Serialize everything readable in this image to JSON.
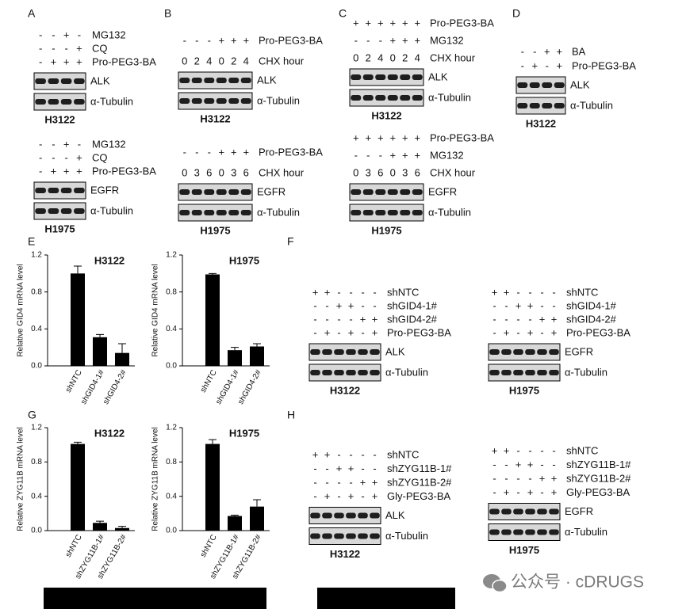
{
  "blots": [
    {
      "panel": "A",
      "rows": [
        {
          "name": "MG132",
          "signs": [
            "-",
            "-",
            "+",
            "-"
          ]
        },
        {
          "name": "CQ",
          "signs": [
            "-",
            "-",
            "-",
            "+"
          ]
        },
        {
          "name": "Pro-PEG3-BA",
          "signs": [
            "-",
            "+",
            "+",
            "+"
          ]
        }
      ],
      "bands": [
        "ALK",
        "α-Tubulin"
      ],
      "cell_line": "H3122"
    },
    {
      "rows": [
        {
          "name": "MG132",
          "signs": [
            "-",
            "-",
            "+",
            "-"
          ]
        },
        {
          "name": "CQ",
          "signs": [
            "-",
            "-",
            "-",
            "+"
          ]
        },
        {
          "name": "Pro-PEG3-BA",
          "signs": [
            "-",
            "+",
            "+",
            "+"
          ]
        }
      ],
      "bands": [
        "EGFR",
        "α-Tubulin"
      ],
      "cell_line": "H1975"
    },
    {
      "panel": "B",
      "rows": [
        {
          "name": "Pro-PEG3-BA",
          "signs": [
            "-",
            "-",
            "-",
            "+",
            "+",
            "+"
          ]
        },
        {
          "name": "CHX  hour",
          "signs": [
            "0",
            "2",
            "4",
            "0",
            "2",
            "4"
          ]
        }
      ],
      "bands": [
        "ALK",
        "α-Tubulin"
      ],
      "cell_line": "H3122"
    },
    {
      "rows": [
        {
          "name": "Pro-PEG3-BA",
          "signs": [
            "-",
            "-",
            "-",
            "+",
            "+",
            "+"
          ]
        },
        {
          "name": "CHX  hour",
          "signs": [
            "0",
            "3",
            "6",
            "0",
            "3",
            "6"
          ]
        }
      ],
      "bands": [
        "EGFR",
        "α-Tubulin"
      ],
      "cell_line": "H1975"
    },
    {
      "panel": "C",
      "rows": [
        {
          "name": "Pro-PEG3-BA",
          "signs": [
            "+",
            "+",
            "+",
            "+",
            "+",
            "+"
          ]
        },
        {
          "name": "MG132",
          "signs": [
            "-",
            "-",
            "-",
            "+",
            "+",
            "+"
          ]
        },
        {
          "name": "CHX  hour",
          "signs": [
            "0",
            "2",
            "4",
            "0",
            "2",
            "4"
          ]
        }
      ],
      "bands": [
        "ALK",
        "α-Tubulin"
      ],
      "cell_line": "H3122"
    },
    {
      "rows": [
        {
          "name": "Pro-PEG3-BA",
          "signs": [
            "+",
            "+",
            "+",
            "+",
            "+",
            "+"
          ]
        },
        {
          "name": "MG132",
          "signs": [
            "-",
            "-",
            "-",
            "+",
            "+",
            "+"
          ]
        },
        {
          "name": "CHX  hour",
          "signs": [
            "0",
            "3",
            "6",
            "0",
            "3",
            "6"
          ]
        }
      ],
      "bands": [
        "EGFR",
        "α-Tubulin"
      ],
      "cell_line": "H1975"
    },
    {
      "panel": "D",
      "rows": [
        {
          "name": "BA",
          "signs": [
            "-",
            "-",
            "+",
            "+"
          ]
        },
        {
          "name": "Pro-PEG3-BA",
          "signs": [
            "-",
            "+",
            "-",
            "+"
          ]
        }
      ],
      "bands": [
        "ALK",
        "α-Tubulin"
      ],
      "cell_line": "H3122"
    },
    {
      "panel": "F",
      "rows": [
        {
          "name": "shNTC",
          "signs": [
            "+",
            "+",
            "-",
            "-",
            "-",
            "-"
          ]
        },
        {
          "name": "shGID4-1#",
          "signs": [
            "-",
            "-",
            "+",
            "+",
            "-",
            "-"
          ]
        },
        {
          "name": "shGID4-2#",
          "signs": [
            "-",
            "-",
            "-",
            "-",
            "+",
            "+"
          ]
        },
        {
          "name": "Pro-PEG3-BA",
          "signs": [
            "-",
            "+",
            "-",
            "+",
            "-",
            "+"
          ]
        }
      ],
      "bands": [
        "ALK",
        "α-Tubulin"
      ],
      "cell_line": "H3122"
    },
    {
      "rows": [
        {
          "name": "shNTC",
          "signs": [
            "+",
            "+",
            "-",
            "-",
            "-",
            "-"
          ]
        },
        {
          "name": "shGID4-1#",
          "signs": [
            "-",
            "-",
            "+",
            "+",
            "-",
            "-"
          ]
        },
        {
          "name": "shGID4-2#",
          "signs": [
            "-",
            "-",
            "-",
            "-",
            "+",
            "+"
          ]
        },
        {
          "name": "Pro-PEG3-BA",
          "signs": [
            "-",
            "+",
            "-",
            "+",
            "-",
            "+"
          ]
        }
      ],
      "bands": [
        "EGFR",
        "α-Tubulin"
      ],
      "cell_line": "H1975"
    },
    {
      "panel": "H",
      "rows": [
        {
          "name": "shNTC",
          "signs": [
            "+",
            "+",
            "-",
            "-",
            "-",
            "-"
          ]
        },
        {
          "name": "shZYG11B-1#",
          "signs": [
            "-",
            "-",
            "+",
            "+",
            "-",
            "-"
          ]
        },
        {
          "name": "shZYG11B-2#",
          "signs": [
            "-",
            "-",
            "-",
            "-",
            "+",
            "+"
          ]
        },
        {
          "name": "Gly-PEG3-BA",
          "signs": [
            "-",
            "+",
            "-",
            "+",
            "-",
            "+"
          ]
        }
      ],
      "bands": [
        "ALK",
        "α-Tubulin"
      ],
      "cell_line": "H3122"
    },
    {
      "rows": [
        {
          "name": "shNTC",
          "signs": [
            "+",
            "+",
            "-",
            "-",
            "-",
            "-"
          ]
        },
        {
          "name": "shZYG11B-1#",
          "signs": [
            "-",
            "-",
            "+",
            "+",
            "-",
            "-"
          ]
        },
        {
          "name": "shZYG11B-2#",
          "signs": [
            "-",
            "-",
            "-",
            "-",
            "+",
            "+"
          ]
        },
        {
          "name": "Gly-PEG3-BA",
          "signs": [
            "-",
            "+",
            "-",
            "+",
            "-",
            "+"
          ]
        }
      ],
      "bands": [
        "EGFR",
        "α-Tubulin"
      ],
      "cell_line": "H1975"
    }
  ],
  "chart_data": [
    {
      "type": "bar",
      "panel": "E",
      "title": "H3122",
      "y_label": "Relative GID4 mRNA level",
      "categories": [
        "shNTC",
        "shGID4-1#",
        "shGID4-2#"
      ],
      "values": [
        1.0,
        0.31,
        0.14
      ],
      "errors": [
        0.08,
        0.03,
        0.1
      ],
      "color": "#000000",
      "ylim": [
        0,
        1.2
      ],
      "yticks": [
        {
          "value": 0,
          "label": "0.0"
        },
        0.4,
        0.8,
        1.2
      ]
    },
    {
      "type": "bar",
      "title": "H1975",
      "y_label": "Relative GID4 mRNA level",
      "categories": [
        "shNTC",
        "shGID4-1#",
        "shGID4-2#"
      ],
      "values": [
        0.99,
        0.17,
        0.21
      ],
      "errors": [
        0.01,
        0.03,
        0.03
      ],
      "color": "#000000",
      "ylim": [
        0,
        1.2
      ],
      "yticks": [
        {
          "value": 0,
          "label": "0.0"
        },
        0.4,
        0.8,
        1.2
      ]
    },
    {
      "type": "bar",
      "panel": "G",
      "title": "H3122",
      "y_label": "Relative ZYG11B mRNA level",
      "categories": [
        "shNTC",
        "shZYG11B-1#",
        "shZYG11B-2#"
      ],
      "values": [
        1.01,
        0.09,
        0.03
      ],
      "errors": [
        0.02,
        0.02,
        0.02
      ],
      "color": "#000000",
      "ylim": [
        0,
        1.2
      ],
      "yticks": [
        {
          "value": 0,
          "label": "0.0"
        },
        0.4,
        0.8,
        1.2
      ]
    },
    {
      "type": "bar",
      "title": "H1975",
      "y_label": "Relative ZYG11B mRNA level",
      "categories": [
        "shNTC",
        "shZYG11B-1#",
        "shZYG11B-2#"
      ],
      "values": [
        1.01,
        0.17,
        0.28
      ],
      "errors": [
        0.05,
        0.01,
        0.08
      ],
      "color": "#000000",
      "ylim": [
        0,
        1.2
      ],
      "yticks": [
        {
          "value": 0,
          "label": "0.0"
        },
        0.4,
        0.8,
        1.2
      ]
    }
  ],
  "watermark": "公众号 · cDRUGS"
}
